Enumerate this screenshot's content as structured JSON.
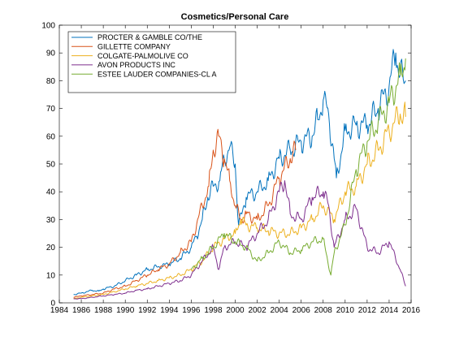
{
  "chart_data": {
    "type": "line",
    "title": "Cosmetics/Personal Care",
    "xlabel": "",
    "ylabel": "",
    "xlim": [
      1984,
      2016
    ],
    "ylim": [
      0,
      100
    ],
    "x_ticks": [
      1984,
      1986,
      1988,
      1990,
      1992,
      1994,
      1996,
      1998,
      2000,
      2002,
      2004,
      2006,
      2008,
      2010,
      2012,
      2014,
      2016
    ],
    "y_ticks": [
      0,
      10,
      20,
      30,
      40,
      50,
      60,
      70,
      80,
      90,
      100
    ],
    "grid": false,
    "legend_position": "top-left",
    "series": [
      {
        "name": "PROCTER & GAMBLE CO/THE",
        "color": "#0072BD",
        "x": [
          1985.3,
          1986.0,
          1987.0,
          1987.6,
          1988.0,
          1989.0,
          1990.0,
          1991.0,
          1992.0,
          1993.0,
          1994.0,
          1995.0,
          1996.0,
          1996.5,
          1997.0,
          1997.5,
          1998.0,
          1998.6,
          1999.0,
          1999.5,
          2000.0,
          2000.3,
          2000.6,
          2001.0,
          2002.0,
          2003.0,
          2004.0,
          2005.0,
          2006.0,
          2007.0,
          2007.5,
          2008.0,
          2008.5,
          2009.0,
          2009.2,
          2010.0,
          2011.0,
          2012.0,
          2013.0,
          2014.0,
          2014.6,
          2015.0,
          2015.5
        ],
        "values": [
          3,
          3.5,
          4.5,
          4.2,
          5,
          6,
          8,
          10,
          12,
          13,
          14,
          16,
          20,
          24,
          30,
          38,
          42,
          44,
          52,
          56,
          50,
          28,
          32,
          38,
          40,
          44,
          52,
          55,
          58,
          60,
          66,
          73,
          68,
          52,
          45,
          62,
          64,
          64,
          70,
          78,
          90,
          82,
          80
        ]
      },
      {
        "name": "GILLETTE COMPANY",
        "color": "#D95319",
        "x": [
          1985.3,
          1986.0,
          1987.0,
          1988.0,
          1989.0,
          1990.0,
          1991.0,
          1992.0,
          1993.0,
          1994.0,
          1995.0,
          1996.0,
          1997.0,
          1997.6,
          1998.0,
          1998.5,
          1999.0,
          1999.5,
          2000.0,
          2000.5,
          2001.0,
          2002.0,
          2003.0,
          2004.0,
          2005.0,
          2005.5
        ],
        "values": [
          2,
          2.5,
          3,
          3.5,
          5,
          6,
          8,
          10,
          12,
          14,
          18,
          22,
          35,
          42,
          55,
          60,
          52,
          44,
          35,
          30,
          32,
          30,
          35,
          45,
          52,
          55
        ]
      },
      {
        "name": "COLGATE-PALMOLIVE CO",
        "color": "#EDB120",
        "x": [
          1985.3,
          1986.0,
          1987.0,
          1988.0,
          1989.0,
          1990.0,
          1991.0,
          1992.0,
          1993.0,
          1994.0,
          1995.0,
          1996.0,
          1997.0,
          1998.0,
          1999.0,
          2000.0,
          2000.5,
          2001.0,
          2002.0,
          2003.0,
          2004.0,
          2005.0,
          2006.0,
          2007.0,
          2008.0,
          2009.0,
          2010.0,
          2011.0,
          2012.0,
          2013.0,
          2014.0,
          2015.0,
          2015.5
        ],
        "values": [
          1.5,
          2,
          2.5,
          3,
          4,
          5,
          6,
          7,
          8,
          9,
          10,
          12,
          15,
          20,
          23,
          25,
          30,
          28,
          27,
          26,
          25,
          25,
          27,
          30,
          35,
          30,
          40,
          42,
          50,
          55,
          62,
          68,
          67
        ]
      },
      {
        "name": "AVON PRODUCTS INC",
        "color": "#7E2F8E",
        "x": [
          1985.3,
          1986.0,
          1987.0,
          1988.0,
          1989.0,
          1990.0,
          1991.0,
          1992.0,
          1993.0,
          1994.0,
          1995.0,
          1996.0,
          1997.0,
          1998.0,
          1998.5,
          1999.0,
          2000.0,
          2001.0,
          2002.0,
          2003.0,
          2004.0,
          2004.5,
          2005.0,
          2006.0,
          2007.0,
          2008.0,
          2008.5,
          2009.0,
          2010.0,
          2011.0,
          2012.0,
          2013.0,
          2014.0,
          2015.0,
          2015.5
        ],
        "values": [
          1.5,
          1.5,
          2,
          2.5,
          3,
          3.5,
          4.5,
          5,
          6,
          7,
          8,
          10,
          15,
          20,
          12,
          20,
          22,
          20,
          25,
          30,
          40,
          44,
          32,
          30,
          38,
          40,
          35,
          20,
          30,
          34,
          20,
          18,
          22,
          12,
          6
        ]
      },
      {
        "name": "ESTEE LAUDER COMPANIES-CL A",
        "color": "#77AC30",
        "x": [
          1996.0,
          1997.0,
          1998.0,
          1999.0,
          2000.0,
          2001.0,
          2002.0,
          2003.0,
          2004.0,
          2005.0,
          2006.0,
          2007.0,
          2008.0,
          2008.7,
          2009.0,
          2010.0,
          2011.0,
          2012.0,
          2013.0,
          2014.0,
          2015.0,
          2015.5
        ],
        "values": [
          12,
          16,
          20,
          25,
          22,
          20,
          15,
          18,
          22,
          18,
          19,
          22,
          23,
          10,
          18,
          28,
          48,
          58,
          65,
          72,
          82,
          88
        ]
      }
    ]
  }
}
